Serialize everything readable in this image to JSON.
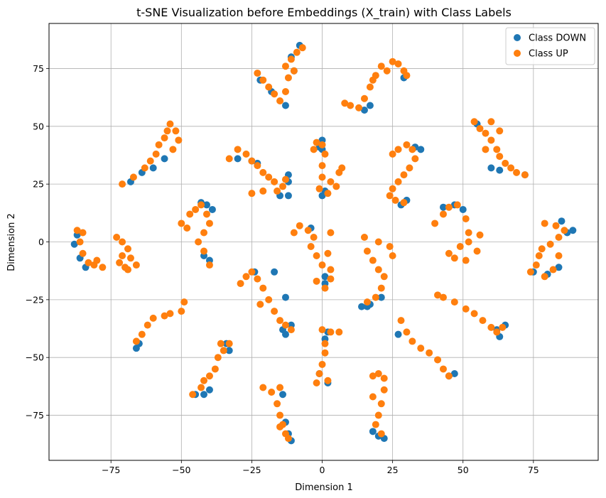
{
  "chart_data": {
    "type": "scatter",
    "title": "t-SNE Visualization before Embeddings (X_train) with Class Labels",
    "xlabel": "Dimension 1",
    "ylabel": "Dimension 2",
    "xlim": [
      -97,
      98
    ],
    "ylim": [
      -94.5,
      94.5
    ],
    "xticks": [
      -75,
      -50,
      -25,
      0,
      25,
      50,
      75
    ],
    "yticks": [
      -75,
      -50,
      -25,
      0,
      25,
      50,
      75
    ],
    "xtick_labels": [
      "−75",
      "−50",
      "−25",
      "0",
      "25",
      "50",
      "75"
    ],
    "ytick_labels": [
      "−75",
      "−50",
      "−25",
      "0",
      "25",
      "50",
      "75"
    ],
    "grid": true,
    "legend_position": "top-right",
    "series": [
      {
        "name": "Class DOWN",
        "color": "#1f77b4",
        "points": [
          [
            -66,
            -46
          ],
          [
            -65,
            -44
          ],
          [
            -68,
            26
          ],
          [
            -64,
            30
          ],
          [
            -60,
            32
          ],
          [
            -56,
            36
          ],
          [
            -88,
            -1
          ],
          [
            -87,
            3
          ],
          [
            -86,
            -7
          ],
          [
            -84,
            -11
          ],
          [
            -43,
            17
          ],
          [
            -41,
            16
          ],
          [
            -39,
            14
          ],
          [
            -42,
            -6
          ],
          [
            -40,
            -8
          ],
          [
            -24,
            -13
          ],
          [
            -17,
            -13
          ],
          [
            -13,
            -24
          ],
          [
            -14,
            -38
          ],
          [
            -13,
            -40
          ],
          [
            -11,
            -36
          ],
          [
            -14,
            -66
          ],
          [
            -13,
            -78
          ],
          [
            -12,
            -83
          ],
          [
            -11,
            -86
          ],
          [
            -45,
            -66
          ],
          [
            -42,
            -66
          ],
          [
            -40,
            -64
          ],
          [
            -34,
            -44
          ],
          [
            -33,
            -47
          ],
          [
            -12,
            20
          ],
          [
            -15,
            20
          ],
          [
            -12,
            26
          ],
          [
            -12,
            29
          ],
          [
            0,
            44
          ],
          [
            0,
            40
          ],
          [
            1,
            22
          ],
          [
            0,
            20
          ],
          [
            -1,
            41
          ],
          [
            -4,
            6
          ],
          [
            1,
            -15
          ],
          [
            1,
            -18
          ],
          [
            2,
            -39
          ],
          [
            1,
            -42
          ],
          [
            -1,
            -57
          ],
          [
            2,
            -61
          ],
          [
            14,
            -28
          ],
          [
            16,
            -28
          ],
          [
            17,
            -27
          ],
          [
            21,
            -24
          ],
          [
            18,
            -82
          ],
          [
            20,
            -84
          ],
          [
            22,
            -85
          ],
          [
            15,
            57
          ],
          [
            17,
            59
          ],
          [
            29,
            71
          ],
          [
            28,
            16
          ],
          [
            30,
            18
          ],
          [
            33,
            41
          ],
          [
            35,
            40
          ],
          [
            27,
            -40
          ],
          [
            45,
            -58
          ],
          [
            47,
            -57
          ],
          [
            43,
            15
          ],
          [
            47,
            16
          ],
          [
            50,
            14
          ],
          [
            60,
            32
          ],
          [
            63,
            31
          ],
          [
            72,
            29
          ],
          [
            55,
            51
          ],
          [
            63,
            -41
          ],
          [
            65,
            -36
          ],
          [
            62,
            -38
          ],
          [
            80,
            -14
          ],
          [
            84,
            -11
          ],
          [
            87,
            4
          ],
          [
            89,
            5
          ],
          [
            85,
            9
          ],
          [
            75,
            -13
          ],
          [
            -22,
            70
          ],
          [
            -18,
            65
          ],
          [
            -13,
            59
          ],
          [
            -10,
            74
          ],
          [
            -11,
            80
          ],
          [
            -8,
            85
          ],
          [
            -30,
            36
          ],
          [
            -25,
            35
          ],
          [
            -23,
            34
          ]
        ]
      },
      {
        "name": "Class UP",
        "color": "#ff7f0e",
        "points": [
          [
            -66,
            -43
          ],
          [
            -64,
            -40
          ],
          [
            -62,
            -36
          ],
          [
            -60,
            -33
          ],
          [
            -56,
            -32
          ],
          [
            -54,
            -31
          ],
          [
            -50,
            -30
          ],
          [
            -49,
            -26
          ],
          [
            -71,
            25
          ],
          [
            -67,
            28
          ],
          [
            -63,
            32
          ],
          [
            -61,
            35
          ],
          [
            -59,
            38
          ],
          [
            -58,
            42
          ],
          [
            -56,
            45
          ],
          [
            -55,
            48
          ],
          [
            -54,
            51
          ],
          [
            -52,
            48
          ],
          [
            -51,
            44
          ],
          [
            -53,
            40
          ],
          [
            -87,
            5
          ],
          [
            -85,
            4
          ],
          [
            -86,
            0
          ],
          [
            -85,
            -5
          ],
          [
            -83,
            -9
          ],
          [
            -81,
            -10
          ],
          [
            -78,
            -11
          ],
          [
            -80,
            -8
          ],
          [
            -73,
            2
          ],
          [
            -71,
            0
          ],
          [
            -69,
            -3
          ],
          [
            -71,
            -6
          ],
          [
            -72,
            -9
          ],
          [
            -69,
            -12
          ],
          [
            -66,
            -10
          ],
          [
            -68,
            -7
          ],
          [
            -70,
            -11
          ],
          [
            -50,
            8
          ],
          [
            -47,
            12
          ],
          [
            -45,
            14
          ],
          [
            -43,
            16
          ],
          [
            -41,
            12
          ],
          [
            -40,
            8
          ],
          [
            -42,
            4
          ],
          [
            -44,
            0
          ],
          [
            -42,
            -4
          ],
          [
            -40,
            -10
          ],
          [
            -48,
            6
          ],
          [
            -33,
            36
          ],
          [
            -30,
            40
          ],
          [
            -27,
            38
          ],
          [
            -25,
            35
          ],
          [
            -23,
            33
          ],
          [
            -21,
            30
          ],
          [
            -19,
            28
          ],
          [
            -17,
            26
          ],
          [
            -14,
            24
          ],
          [
            -21,
            22
          ],
          [
            -25,
            21
          ],
          [
            -16,
            22
          ],
          [
            -13,
            27
          ],
          [
            -23,
            73
          ],
          [
            -21,
            70
          ],
          [
            -19,
            67
          ],
          [
            -17,
            64
          ],
          [
            -15,
            61
          ],
          [
            -13,
            65
          ],
          [
            -12,
            71
          ],
          [
            -13,
            76
          ],
          [
            -11,
            79
          ],
          [
            -9,
            82
          ],
          [
            -7,
            84
          ],
          [
            -10,
            74
          ],
          [
            -29,
            -18
          ],
          [
            -27,
            -15
          ],
          [
            -25,
            -13
          ],
          [
            -23,
            -16
          ],
          [
            -21,
            -20
          ],
          [
            -19,
            -25
          ],
          [
            -17,
            -30
          ],
          [
            -15,
            -34
          ],
          [
            -13,
            -36
          ],
          [
            -11,
            -38
          ],
          [
            -22,
            -27
          ],
          [
            -46,
            -66
          ],
          [
            -43,
            -63
          ],
          [
            -42,
            -60
          ],
          [
            -40,
            -58
          ],
          [
            -38,
            -55
          ],
          [
            -37,
            -50
          ],
          [
            -35,
            -47
          ],
          [
            -33,
            -44
          ],
          [
            -36,
            -44
          ],
          [
            -21,
            -63
          ],
          [
            -18,
            -65
          ],
          [
            -15,
            -63
          ],
          [
            -16,
            -70
          ],
          [
            -15,
            -75
          ],
          [
            -14,
            -79
          ],
          [
            -13,
            -83
          ],
          [
            -12,
            -85
          ],
          [
            -15,
            -80
          ],
          [
            -3,
            40
          ],
          [
            -2,
            43
          ],
          [
            0,
            42
          ],
          [
            1,
            38
          ],
          [
            0,
            33
          ],
          [
            0,
            28
          ],
          [
            3,
            26
          ],
          [
            6,
            30
          ],
          [
            7,
            32
          ],
          [
            5,
            24
          ],
          [
            2,
            21
          ],
          [
            -1,
            23
          ],
          [
            -10,
            4
          ],
          [
            -8,
            7
          ],
          [
            -5,
            5
          ],
          [
            -3,
            2
          ],
          [
            -4,
            -2
          ],
          [
            -2,
            -6
          ],
          [
            0,
            -10
          ],
          [
            3,
            -12
          ],
          [
            -2,
            -17
          ],
          [
            1,
            -20
          ],
          [
            3,
            -16
          ],
          [
            2,
            -5
          ],
          [
            3,
            4
          ],
          [
            0,
            -38
          ],
          [
            3,
            -39
          ],
          [
            6,
            -39
          ],
          [
            1,
            -44
          ],
          [
            1,
            -48
          ],
          [
            0,
            -53
          ],
          [
            -1,
            -57
          ],
          [
            2,
            -60
          ],
          [
            -2,
            -61
          ],
          [
            8,
            60
          ],
          [
            10,
            59
          ],
          [
            13,
            58
          ],
          [
            15,
            62
          ],
          [
            17,
            67
          ],
          [
            19,
            72
          ],
          [
            21,
            76
          ],
          [
            23,
            74
          ],
          [
            25,
            78
          ],
          [
            27,
            77
          ],
          [
            29,
            74
          ],
          [
            30,
            72
          ],
          [
            18,
            70
          ],
          [
            25,
            38
          ],
          [
            27,
            40
          ],
          [
            30,
            42
          ],
          [
            32,
            40
          ],
          [
            33,
            36
          ],
          [
            31,
            32
          ],
          [
            29,
            29
          ],
          [
            27,
            26
          ],
          [
            25,
            23
          ],
          [
            24,
            20
          ],
          [
            26,
            18
          ],
          [
            29,
            17
          ],
          [
            15,
            2
          ],
          [
            16,
            -4
          ],
          [
            18,
            -8
          ],
          [
            20,
            -12
          ],
          [
            22,
            -15
          ],
          [
            21,
            -20
          ],
          [
            19,
            -24
          ],
          [
            16,
            -26
          ],
          [
            20,
            0
          ],
          [
            24,
            -2
          ],
          [
            25,
            -6
          ],
          [
            18,
            -58
          ],
          [
            20,
            -57
          ],
          [
            22,
            -59
          ],
          [
            22,
            -64
          ],
          [
            21,
            -70
          ],
          [
            20,
            -75
          ],
          [
            19,
            -79
          ],
          [
            21,
            -83
          ],
          [
            18,
            -67
          ],
          [
            28,
            -34
          ],
          [
            30,
            -39
          ],
          [
            32,
            -43
          ],
          [
            35,
            -46
          ],
          [
            38,
            -48
          ],
          [
            41,
            -51
          ],
          [
            43,
            -55
          ],
          [
            45,
            -58
          ],
          [
            41,
            -23
          ],
          [
            43,
            -24
          ],
          [
            47,
            -26
          ],
          [
            51,
            -29
          ],
          [
            54,
            -31
          ],
          [
            57,
            -34
          ],
          [
            60,
            -37
          ],
          [
            62,
            -39
          ],
          [
            64,
            -37
          ],
          [
            40,
            8
          ],
          [
            43,
            12
          ],
          [
            45,
            15
          ],
          [
            48,
            16
          ],
          [
            51,
            10
          ],
          [
            52,
            4
          ],
          [
            49,
            -2
          ],
          [
            45,
            -5
          ],
          [
            47,
            -7
          ],
          [
            51,
            -8
          ],
          [
            55,
            -4
          ],
          [
            56,
            3
          ],
          [
            52,
            0
          ],
          [
            54,
            52
          ],
          [
            56,
            49
          ],
          [
            58,
            47
          ],
          [
            60,
            44
          ],
          [
            62,
            40
          ],
          [
            63,
            37
          ],
          [
            65,
            34
          ],
          [
            67,
            32
          ],
          [
            69,
            30
          ],
          [
            72,
            29
          ],
          [
            60,
            52
          ],
          [
            63,
            48
          ],
          [
            58,
            40
          ],
          [
            74,
            -13
          ],
          [
            76,
            -10
          ],
          [
            77,
            -6
          ],
          [
            78,
            -3
          ],
          [
            81,
            -1
          ],
          [
            84,
            2
          ],
          [
            86,
            5
          ],
          [
            83,
            7
          ],
          [
            79,
            8
          ],
          [
            84,
            -6
          ],
          [
            82,
            -12
          ],
          [
            79,
            -15
          ]
        ]
      }
    ]
  }
}
